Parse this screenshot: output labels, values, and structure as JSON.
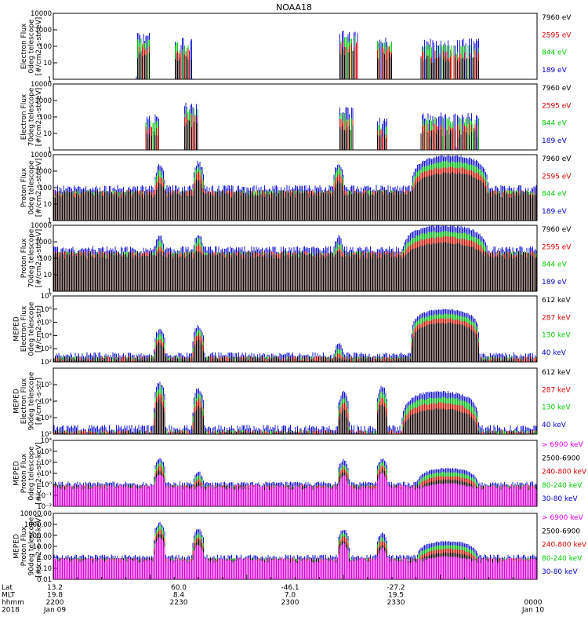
{
  "title": "NOAA18",
  "time_axis": {
    "rows": [
      {
        "label": "Lat",
        "values": [
          "13.2",
          "60.0",
          "-46.1",
          "-27.2",
          ""
        ]
      },
      {
        "label": "MLT",
        "values": [
          "19.8",
          "8.4",
          "7.0",
          "19.5",
          ""
        ]
      },
      {
        "label": "hhmm",
        "values": [
          "2200",
          "2230",
          "2300",
          "2330",
          "0000"
        ]
      },
      {
        "label": "2018",
        "values": [
          "Jan 09",
          "",
          "",
          "",
          "Jan 10"
        ]
      }
    ]
  },
  "chart_data": [
    {
      "type": "line",
      "ylabel": [
        "Electron Flux",
        "0deg telescope",
        "[#/cm2-s-str-eV]"
      ],
      "yscale": "log",
      "ylim": [
        1,
        10000
      ],
      "ticks": [
        "1",
        "10",
        "100",
        "1000",
        "10000"
      ],
      "tick_values": [
        1,
        10,
        100,
        1000,
        10000
      ],
      "series": [
        {
          "name": "7960 eV",
          "color": "#000000"
        },
        {
          "name": "2595 eV",
          "color": "#dd0000"
        },
        {
          "name": "844 eV",
          "color": "#00cc00"
        },
        {
          "name": "189 eV",
          "color": "#0000cc"
        }
      ],
      "bursts": [
        {
          "t": [
            0.17,
            0.2
          ],
          "peak": 700
        },
        {
          "t": [
            0.25,
            0.29
          ],
          "peak": 400
        },
        {
          "t": [
            0.59,
            0.63
          ],
          "peak": 1000
        },
        {
          "t": [
            0.67,
            0.7
          ],
          "peak": 500
        },
        {
          "t": [
            0.76,
            0.88
          ],
          "peak": 300
        }
      ]
    },
    {
      "type": "line",
      "ylabel": [
        "Electron Flux",
        "70deg telescope",
        "[#/cm2-s-str-eV]"
      ],
      "yscale": "log",
      "ylim": [
        1,
        10000
      ],
      "ticks": [
        "1",
        "10",
        "100",
        "1000",
        "10000"
      ],
      "tick_values": [
        1,
        10,
        100,
        1000,
        10000
      ],
      "series": [
        {
          "name": "7960 eV",
          "color": "#000000"
        },
        {
          "name": "2595 eV",
          "color": "#dd0000"
        },
        {
          "name": "844 eV",
          "color": "#00cc00"
        },
        {
          "name": "189 eV",
          "color": "#0000cc"
        }
      ],
      "bursts": [
        {
          "t": [
            0.19,
            0.22
          ],
          "peak": 150
        },
        {
          "t": [
            0.27,
            0.3
          ],
          "peak": 800
        },
        {
          "t": [
            0.59,
            0.62
          ],
          "peak": 400
        },
        {
          "t": [
            0.67,
            0.69
          ],
          "peak": 100
        },
        {
          "t": [
            0.76,
            0.88
          ],
          "peak": 200
        }
      ]
    },
    {
      "type": "line",
      "ylabel": [
        "Proton Flux",
        "0deg telescope",
        "[#/cm2-s-str-eV]"
      ],
      "yscale": "log",
      "ylim": [
        1,
        10000
      ],
      "ticks": [
        "1",
        "10",
        "100",
        "1000",
        "10000"
      ],
      "tick_values": [
        1,
        10,
        100,
        1000,
        10000
      ],
      "series": [
        {
          "name": "7960 eV",
          "color": "#000000"
        },
        {
          "name": "2595 eV",
          "color": "#dd0000"
        },
        {
          "name": "844 eV",
          "color": "#00cc00"
        },
        {
          "name": "189 eV",
          "color": "#0000cc"
        }
      ],
      "baseline": 80,
      "spikes": [
        {
          "t": 0.22,
          "peak": 3000
        },
        {
          "t": 0.3,
          "peak": 5000
        },
        {
          "t": 0.59,
          "peak": 4000
        }
      ],
      "hump": {
        "t": [
          0.74,
          0.9
        ],
        "peak": 9000
      }
    },
    {
      "type": "line",
      "ylabel": [
        "Proton Flux",
        "70deg telescope",
        "[#/cm2-s-str-eV]"
      ],
      "yscale": "log",
      "ylim": [
        1,
        10000
      ],
      "ticks": [
        "1",
        "10",
        "100",
        "1000",
        "10000"
      ],
      "tick_values": [
        1,
        10,
        100,
        1000,
        10000
      ],
      "series": [
        {
          "name": "7960 eV",
          "color": "#000000"
        },
        {
          "name": "2595 eV",
          "color": "#dd0000"
        },
        {
          "name": "844 eV",
          "color": "#00cc00"
        },
        {
          "name": "189 eV",
          "color": "#0000cc"
        }
      ],
      "baseline": 300,
      "spikes": [
        {
          "t": 0.22,
          "peak": 3000
        },
        {
          "t": 0.3,
          "peak": 4000
        },
        {
          "t": 0.59,
          "peak": 2500
        }
      ],
      "hump": {
        "t": [
          0.72,
          0.9
        ],
        "peak": 10000
      }
    },
    {
      "type": "line",
      "ylabel": [
        "MEPED",
        "Electron Flux",
        "0deg telescope",
        "[#/cm2-s-str]"
      ],
      "yscale": "log",
      "ylim": [
        100,
        10000000
      ],
      "ticks": [
        "10²",
        "10³",
        "10⁴",
        "10⁵",
        "10⁶",
        "10⁷"
      ],
      "tick_values": [
        100,
        1000,
        10000,
        100000,
        1000000,
        10000000
      ],
      "series": [
        {
          "name": "612 keV",
          "color": "#000000"
        },
        {
          "name": "287 keV",
          "color": "#dd0000"
        },
        {
          "name": "130 keV",
          "color": "#00cc00"
        },
        {
          "name": "40 keV",
          "color": "#0000cc"
        }
      ],
      "baseline": 300,
      "spikes": [
        {
          "t": 0.22,
          "peak": 40000
        },
        {
          "t": 0.3,
          "peak": 80000
        },
        {
          "t": 0.59,
          "peak": 3000
        }
      ],
      "hump": {
        "t": [
          0.74,
          0.88
        ],
        "peak": 1000000
      }
    },
    {
      "type": "line",
      "ylabel": [
        "MEPED",
        "Electron Flux",
        "90deg telescope",
        "[#/cm2-s-str]"
      ],
      "yscale": "log",
      "ylim": [
        100,
        1000000
      ],
      "ticks": [
        "10²",
        "10³",
        "10⁴",
        "10⁵"
      ],
      "tick_values": [
        100,
        1000,
        10000,
        100000
      ],
      "series": [
        {
          "name": "612 keV",
          "color": "#000000"
        },
        {
          "name": "287 keV",
          "color": "#dd0000"
        },
        {
          "name": "130 keV",
          "color": "#00cc00"
        },
        {
          "name": "40 keV",
          "color": "#0000cc"
        }
      ],
      "baseline": 200,
      "spikes": [
        {
          "t": 0.22,
          "peak": 200000
        },
        {
          "t": 0.3,
          "peak": 80000
        },
        {
          "t": 0.6,
          "peak": 50000
        },
        {
          "t": 0.68,
          "peak": 100000
        }
      ],
      "hump": {
        "t": [
          0.72,
          0.88
        ],
        "peak": 40000
      }
    },
    {
      "type": "line",
      "ylabel": [
        "MEPED",
        "Proton Flux",
        "0deg telescope",
        "[#/cm2-s-str-keV]"
      ],
      "yscale": "log",
      "ylim": [
        0.01,
        10000
      ],
      "ticks": [
        "10⁻²",
        "10⁻¹",
        "10⁰",
        "10¹",
        "10²",
        "10³",
        "10⁴"
      ],
      "tick_values": [
        0.01,
        0.1,
        1,
        10,
        100,
        1000,
        10000
      ],
      "series": [
        {
          "name": "> 6900 keV",
          "color": "#ee00ee"
        },
        {
          "name": "2500-6900",
          "color": "#000000"
        },
        {
          "name": "240-800 keV",
          "color": "#dd0000"
        },
        {
          "name": "80-240 keV",
          "color": "#00cc00"
        },
        {
          "name": "30-80 keV",
          "color": "#0000cc"
        }
      ],
      "baseline": 1,
      "spikes": [
        {
          "t": 0.22,
          "peak": 300
        },
        {
          "t": 0.3,
          "peak": 20
        },
        {
          "t": 0.6,
          "peak": 200
        },
        {
          "t": 0.68,
          "peak": 300
        }
      ],
      "hump": {
        "t": [
          0.75,
          0.88
        ],
        "peak": 30
      }
    },
    {
      "type": "line",
      "ylabel": [
        "MEPED",
        "Proton Flux",
        "90deg telescope",
        "[#/cm2-s-str-keV]"
      ],
      "yscale": "log",
      "ylim": [
        0.01,
        10000
      ],
      "ticks": [
        "0.01",
        "0.10",
        "1.00",
        "10.00",
        "100.00",
        "1000.00",
        "10000.00"
      ],
      "tick_values": [
        0.01,
        0.1,
        1,
        10,
        100,
        1000,
        10000
      ],
      "series": [
        {
          "name": "> 6900 keV",
          "color": "#ee00ee"
        },
        {
          "name": "2500-6900",
          "color": "#000000"
        },
        {
          "name": "240-800 keV",
          "color": "#dd0000"
        },
        {
          "name": "80-240 keV",
          "color": "#00cc00"
        },
        {
          "name": "30-80 keV",
          "color": "#0000cc"
        }
      ],
      "baseline": 1,
      "spikes": [
        {
          "t": 0.22,
          "peak": 2000
        },
        {
          "t": 0.3,
          "peak": 500
        },
        {
          "t": 0.6,
          "peak": 500
        },
        {
          "t": 0.68,
          "peak": 200
        }
      ],
      "hump": {
        "t": [
          0.75,
          0.88
        ],
        "peak": 30
      }
    }
  ]
}
